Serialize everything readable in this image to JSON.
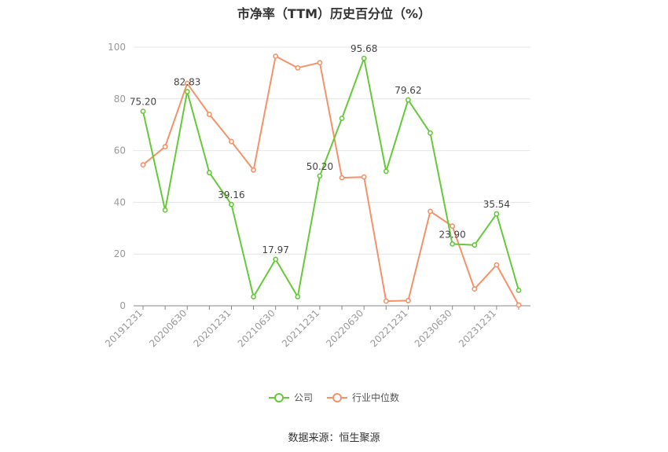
{
  "title": "市净率（TTM）历史百分位（%）",
  "source": "数据来源：恒生聚源",
  "colors": {
    "company": "#66c93a",
    "industry": "#f4926a",
    "grid": "#e6e6e6",
    "axis": "#999999"
  },
  "chart_data": {
    "type": "line",
    "title": "市净率（TTM）历史百分位（%）",
    "xlabel": "",
    "ylabel": "",
    "ylim": [
      0,
      100
    ],
    "yticks": [
      0,
      20,
      40,
      60,
      80,
      100
    ],
    "grid": true,
    "legend_position": "bottom",
    "x": [
      "20191231",
      "20200331",
      "20200630",
      "20200930",
      "20201231",
      "20210331",
      "20210630",
      "20210930",
      "20211231",
      "20220331",
      "20220630",
      "20220930",
      "20221231",
      "20230331",
      "20230630",
      "20230930",
      "20231231",
      "20240331"
    ],
    "x_tick_labels": [
      "20191231",
      "20200630",
      "20201231",
      "20210630",
      "20211231",
      "20220630",
      "20221231",
      "20230630",
      "20231231"
    ],
    "series": [
      {
        "name": "公司",
        "values": [
          75.2,
          37.0,
          82.83,
          51.5,
          39.16,
          3.5,
          17.97,
          3.5,
          50.2,
          72.5,
          95.68,
          52.0,
          79.62,
          66.8,
          23.9,
          23.5,
          35.54,
          6.0
        ],
        "labels": {
          "0": "75.20",
          "2": "82.83",
          "4": "39.16",
          "6": "17.97",
          "8": "50.20",
          "10": "95.68",
          "12": "79.62",
          "14": "23.90",
          "16": "35.54"
        }
      },
      {
        "name": "行业中位数",
        "values": [
          54.5,
          61.5,
          86.0,
          74.0,
          63.5,
          52.5,
          96.5,
          92.0,
          94.0,
          49.5,
          49.8,
          1.8,
          2.0,
          36.5,
          30.8,
          6.5,
          15.8,
          0.3
        ]
      }
    ]
  }
}
